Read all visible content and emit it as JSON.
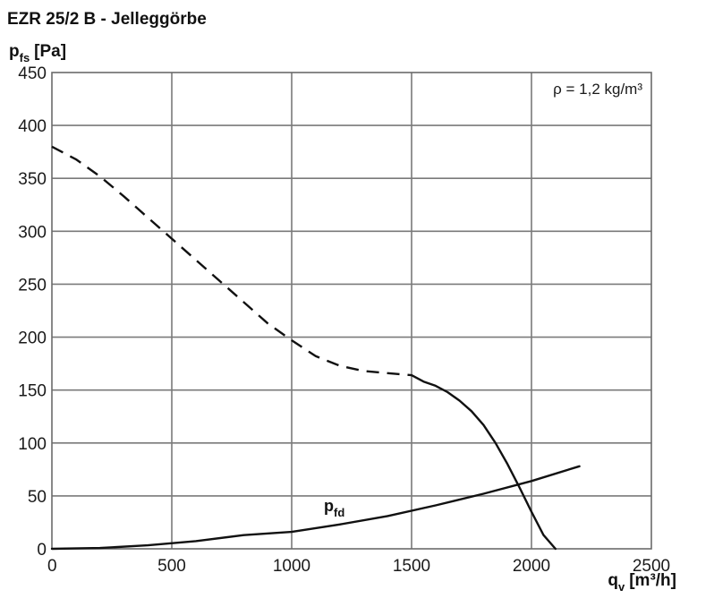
{
  "chart_data": {
    "type": "line",
    "title": "EZR 25/2 B - Jelleggörbe",
    "ylabel": {
      "main": "p",
      "sub": "fs",
      "unit": "[Pa]"
    },
    "xlabel": {
      "main": "q",
      "sub": "v",
      "unit": "[m³/h]"
    },
    "xlim": [
      0,
      2500
    ],
    "ylim": [
      0,
      450
    ],
    "x_ticks": [
      0,
      500,
      1000,
      1500,
      2000,
      2500
    ],
    "y_ticks": [
      0,
      50,
      100,
      150,
      200,
      250,
      300,
      350,
      400,
      450
    ],
    "grid": true,
    "annotation": "ρ = 1,2 kg/m³",
    "series": [
      {
        "id": "pfs_unstable",
        "style": "dashed",
        "x": [
          0,
          100,
          200,
          300,
          400,
          500,
          600,
          700,
          800,
          900,
          1000,
          1100,
          1200,
          1300,
          1400,
          1500
        ],
        "y": [
          380,
          368,
          352,
          333,
          313,
          293,
          273,
          253,
          233,
          213,
          197,
          182,
          173,
          168,
          166,
          164
        ]
      },
      {
        "id": "pfs_stable",
        "style": "solid",
        "x": [
          1500,
          1550,
          1600,
          1650,
          1700,
          1750,
          1800,
          1850,
          1900,
          1950,
          2000,
          2050,
          2100,
          2150,
          2200
        ],
        "y": [
          164,
          158,
          154,
          148,
          140,
          130,
          117,
          100,
          80,
          58,
          35,
          13,
          0,
          0,
          0
        ],
        "note": "solid segment, ends where it reaches the x-axis"
      },
      {
        "id": "pfd",
        "label": {
          "main": "p",
          "sub": "fd"
        },
        "style": "solid",
        "x": [
          0,
          200,
          400,
          600,
          800,
          1000,
          1200,
          1400,
          1600,
          1800,
          2000,
          2200
        ],
        "y": [
          0,
          0.8,
          3.3,
          7.3,
          12.9,
          16,
          23,
          31,
          41,
          52,
          64,
          78
        ]
      }
    ]
  }
}
